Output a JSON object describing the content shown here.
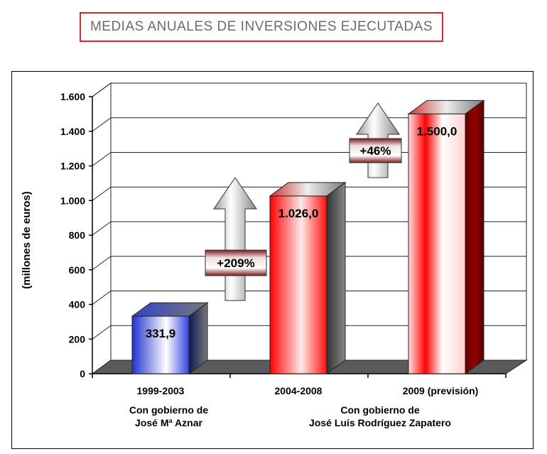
{
  "page_title": "MEDIAS ANUALES DE INVERSIONES EJECUTADAS",
  "chart_data": {
    "type": "bar",
    "ylabel": "(millones de euros)",
    "ylim": [
      0,
      1600
    ],
    "yticks": [
      0,
      200,
      400,
      600,
      800,
      1000,
      1200,
      1400,
      1600
    ],
    "ytick_labels": [
      "0",
      "200",
      "400",
      "600",
      "800",
      "1.000",
      "1.200",
      "1.400",
      "1.600"
    ],
    "categories": [
      "1999-2003",
      "2004-2008",
      "2009 (previsión)"
    ],
    "values": [
      331.9,
      1026.0,
      1500.0
    ],
    "value_labels": [
      "331,9",
      "1.026,0",
      "1.500,0"
    ],
    "bar_colors": [
      "#2a3fd0",
      "#ff0000",
      "#e00000"
    ],
    "bar_dark_colors": [
      "#1a237e",
      "#444444",
      "#7a0000"
    ],
    "grid": true,
    "three_d": true,
    "annotations": [
      {
        "text": "+209%",
        "from": 0,
        "to": 1
      },
      {
        "text": "+46%",
        "from": 1,
        "to": 2
      }
    ],
    "group_captions": [
      {
        "line1": "Con gobierno de",
        "line2": "José Mª Aznar"
      },
      {
        "line1": "Con gobierno de",
        "line2": "José Luís Rodríguez Zapatero"
      }
    ]
  }
}
